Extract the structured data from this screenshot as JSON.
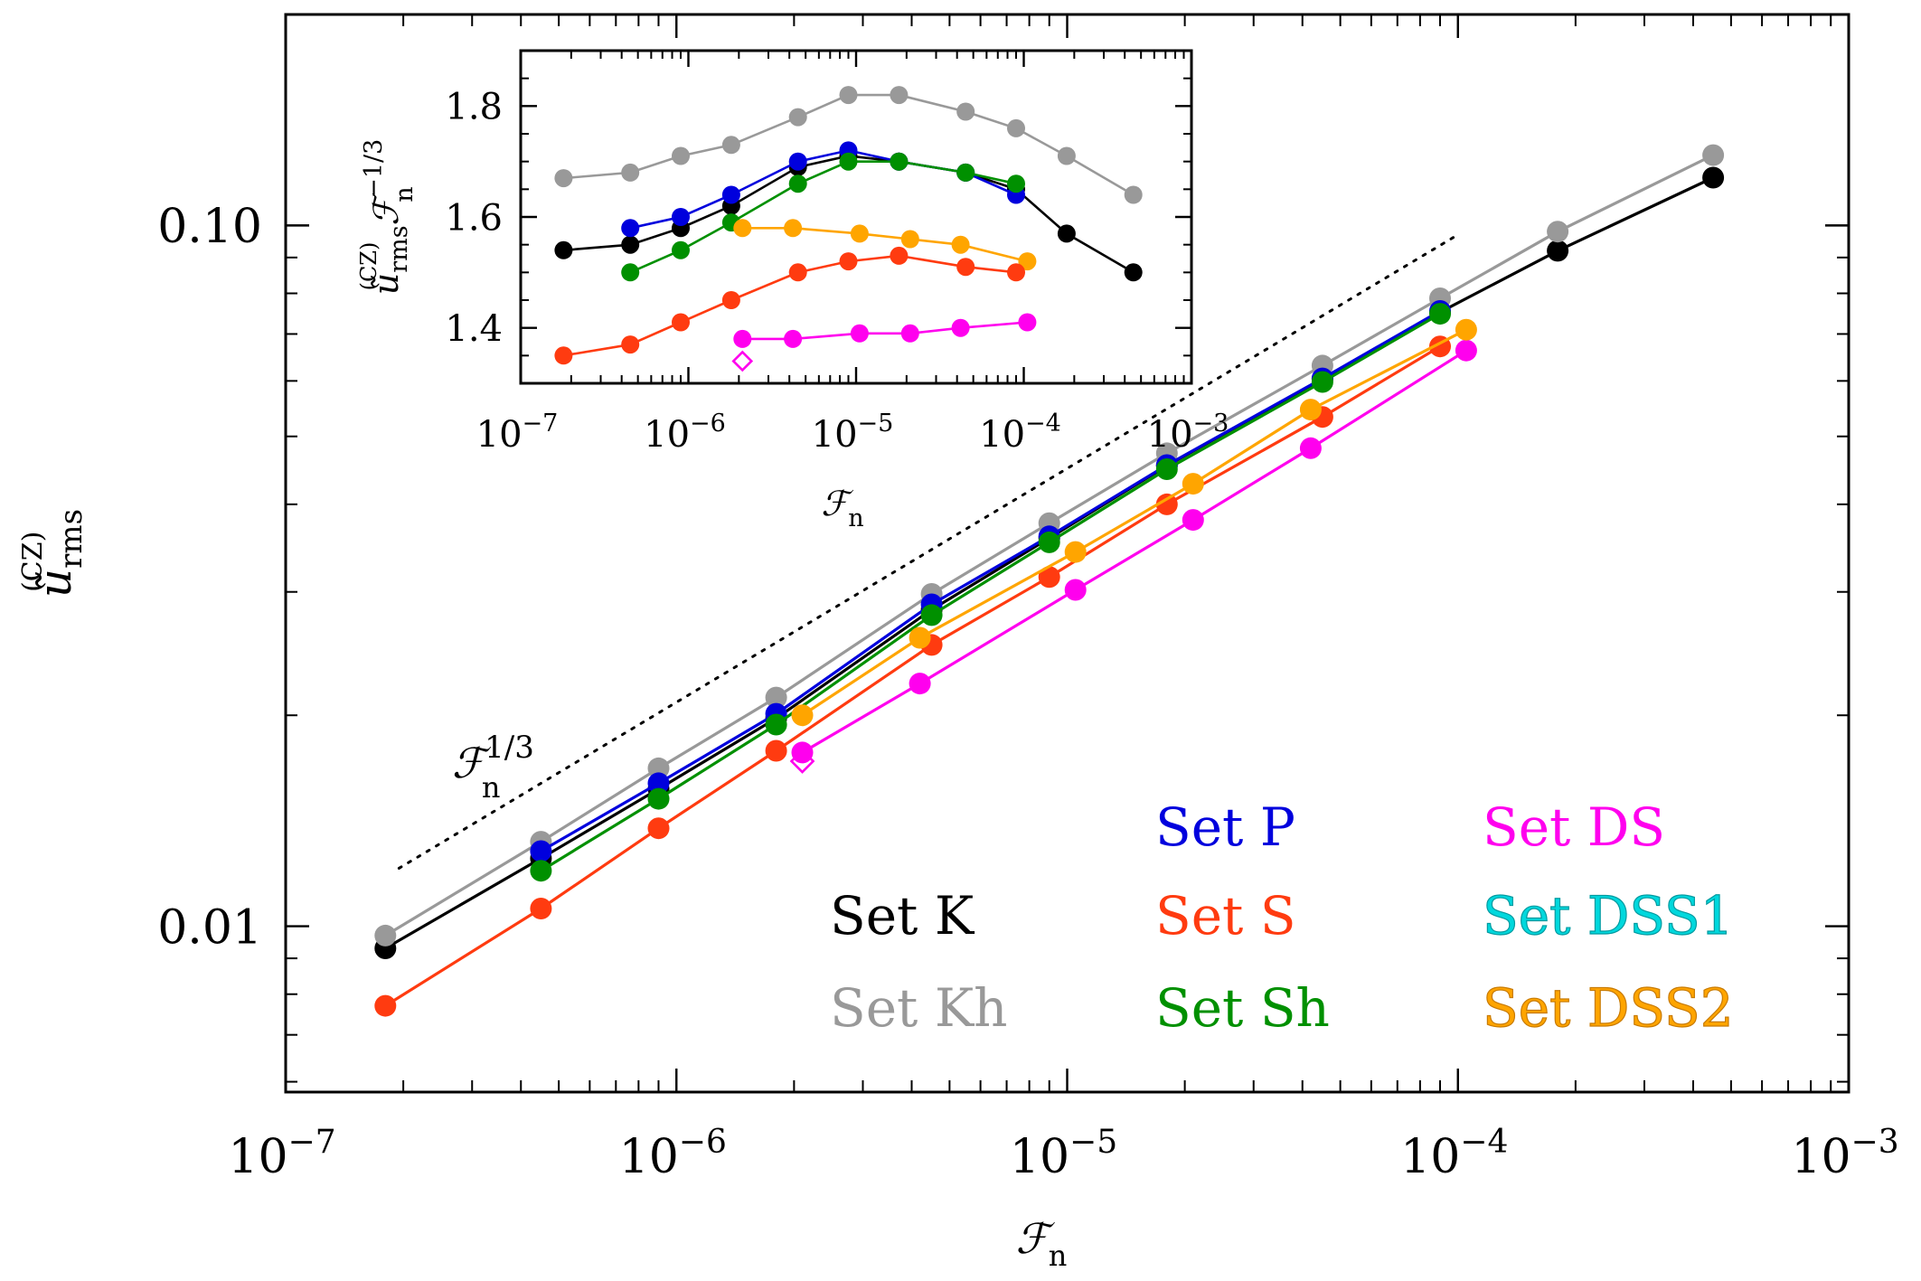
{
  "chart_data": [
    {
      "type": "line",
      "title": "",
      "xlabel": "ℱ",
      "xlabel_sub": "n",
      "ylabel": "ũ",
      "ylabel_sup": "(CZ)",
      "ylabel_sub": "rms",
      "xscale": "log",
      "yscale": "log",
      "xlim": [
        1e-07,
        0.001
      ],
      "ylim": [
        0.0058,
        0.2
      ],
      "x_ticks": [
        {
          "value": 1e-07,
          "base": "10",
          "exp": "−7"
        },
        {
          "value": 1e-06,
          "base": "10",
          "exp": "−6"
        },
        {
          "value": 1e-05,
          "base": "10",
          "exp": "−5"
        },
        {
          "value": 0.0001,
          "base": "10",
          "exp": "−4"
        },
        {
          "value": 0.001,
          "base": "10",
          "exp": "−3"
        }
      ],
      "y_ticks": [
        {
          "value": 0.01,
          "label": "0.01"
        },
        {
          "value": 0.1,
          "label": "0.10"
        }
      ],
      "reference_line": {
        "label": "ℱ",
        "label_sub": "n",
        "label_sup": "1/3",
        "x": [
          1.95e-07,
          0.0001
        ],
        "y": [
          0.0121,
          0.097
        ]
      },
      "series": [
        {
          "name": "Set K",
          "color": "#000000",
          "x": [
            1.8e-07,
            4.5e-07,
            9e-07,
            1.8e-06,
            4.5e-06,
            9e-06,
            1.8e-05,
            4.5e-05,
            9e-05,
            0.00018,
            0.00045
          ],
          "y": [
            0.0093,
            0.0125,
            0.0157,
            0.0198,
            0.0283,
            0.0358,
            0.0454,
            0.0604,
            0.0752,
            0.092,
            0.117
          ]
        },
        {
          "name": "Set Kh",
          "color": "#999999",
          "x": [
            1.8e-07,
            4.5e-07,
            9e-07,
            1.8e-06,
            4.5e-06,
            9e-06,
            1.8e-05,
            4.5e-05,
            9e-05,
            0.00018,
            0.00045
          ],
          "y": [
            0.0097,
            0.0132,
            0.0168,
            0.0212,
            0.0298,
            0.0376,
            0.0473,
            0.0631,
            0.0787,
            0.098,
            0.126
          ]
        },
        {
          "name": "Set P",
          "color": "#0000dd",
          "x": [
            4.5e-07,
            9e-07,
            1.8e-06,
            4.5e-06,
            9e-06,
            1.8e-05,
            4.5e-05,
            9e-05
          ],
          "y": [
            0.0128,
            0.016,
            0.0201,
            0.0288,
            0.036,
            0.0455,
            0.0605,
            0.0755
          ]
        },
        {
          "name": "Set S",
          "color": "#ff3b10",
          "x": [
            1.8e-07,
            4.5e-07,
            9e-07,
            1.8e-06,
            4.5e-06,
            9e-06,
            1.8e-05,
            4.5e-05,
            9e-05
          ],
          "y": [
            0.0077,
            0.0106,
            0.0138,
            0.0178,
            0.0252,
            0.0315,
            0.04,
            0.0533,
            0.0672
          ]
        },
        {
          "name": "Set Sh",
          "color": "#009000",
          "x": [
            4.5e-07,
            9e-07,
            1.8e-06,
            4.5e-06,
            9e-06,
            1.8e-05,
            4.5e-05,
            9e-05
          ],
          "y": [
            0.012,
            0.0152,
            0.0194,
            0.0278,
            0.0353,
            0.0449,
            0.0598,
            0.0748
          ]
        },
        {
          "name": "Set DS",
          "color": "#ff00ee",
          "x": [
            2.1e-06,
            4.2e-06,
            1.05e-05,
            2.1e-05,
            4.2e-05,
            0.000105
          ],
          "y": [
            0.0177,
            0.0222,
            0.0302,
            0.038,
            0.0481,
            0.0663
          ]
        },
        {
          "name": "Set DSS1",
          "color": "#00d8dd",
          "x": [],
          "y": []
        },
        {
          "name": "Set DSS2",
          "color": "#ffa500",
          "x": [
            2.1e-06,
            4.2e-06,
            1.05e-05,
            2.1e-05,
            4.2e-05,
            0.000105
          ],
          "y": [
            0.02,
            0.0258,
            0.0342,
            0.0428,
            0.0546,
            0.071
          ]
        }
      ],
      "open_markers": [
        {
          "series": "Set DS",
          "shape": "diamond",
          "x": 2.1e-06,
          "y": 0.0172
        }
      ]
    },
    {
      "type": "line",
      "title": "inset",
      "xlabel": "ℱ",
      "xlabel_sub": "n",
      "ylabel": "ũ",
      "ylabel_sup": "(CZ)",
      "ylabel_sub": "rms",
      "ylabel_factor": "ℱ",
      "ylabel_factor_sub": "n",
      "ylabel_factor_sup": "−1/3",
      "xscale": "log",
      "yscale": "linear",
      "xlim": [
        1e-07,
        0.001
      ],
      "ylim": [
        1.3,
        1.9
      ],
      "x_ticks": [
        {
          "value": 1e-07,
          "base": "10",
          "exp": "−7"
        },
        {
          "value": 1e-06,
          "base": "10",
          "exp": "−6"
        },
        {
          "value": 1e-05,
          "base": "10",
          "exp": "−5"
        },
        {
          "value": 0.0001,
          "base": "10",
          "exp": "−4"
        },
        {
          "value": 0.001,
          "base": "10",
          "exp": "−3"
        }
      ],
      "y_ticks": [
        {
          "value": 1.4,
          "label": "1.4"
        },
        {
          "value": 1.6,
          "label": "1.6"
        },
        {
          "value": 1.8,
          "label": "1.8"
        }
      ],
      "series": [
        {
          "name": "Set Kh",
          "color": "#999999",
          "x": [
            1.8e-07,
            4.5e-07,
            9e-07,
            1.8e-06,
            4.5e-06,
            9e-06,
            1.8e-05,
            4.5e-05,
            9e-05,
            0.00018,
            0.00045
          ],
          "y": [
            1.67,
            1.68,
            1.71,
            1.73,
            1.78,
            1.82,
            1.82,
            1.79,
            1.76,
            1.71,
            1.64
          ]
        },
        {
          "name": "Set K",
          "color": "#000000",
          "x": [
            1.8e-07,
            4.5e-07,
            9e-07,
            1.8e-06,
            4.5e-06,
            9e-06,
            1.8e-05,
            4.5e-05,
            9e-05,
            0.00018,
            0.00045
          ],
          "y": [
            1.54,
            1.55,
            1.58,
            1.62,
            1.69,
            1.71,
            1.7,
            1.68,
            1.65,
            1.57,
            1.5
          ]
        },
        {
          "name": "Set P",
          "color": "#0000dd",
          "x": [
            4.5e-07,
            9e-07,
            1.8e-06,
            4.5e-06,
            9e-06,
            1.8e-05,
            4.5e-05,
            9e-05
          ],
          "y": [
            1.58,
            1.6,
            1.64,
            1.7,
            1.72,
            1.7,
            1.68,
            1.64
          ]
        },
        {
          "name": "Set Sh",
          "color": "#009000",
          "x": [
            4.5e-07,
            9e-07,
            1.8e-06,
            4.5e-06,
            9e-06,
            1.8e-05,
            4.5e-05,
            9e-05
          ],
          "y": [
            1.5,
            1.54,
            1.59,
            1.66,
            1.7,
            1.7,
            1.68,
            1.66
          ]
        },
        {
          "name": "Set DSS2",
          "color": "#ffa500",
          "x": [
            2.1e-06,
            4.2e-06,
            1.05e-05,
            2.1e-05,
            4.2e-05,
            0.000105
          ],
          "y": [
            1.58,
            1.58,
            1.57,
            1.56,
            1.55,
            1.52
          ]
        },
        {
          "name": "Set S",
          "color": "#ff3b10",
          "x": [
            1.8e-07,
            4.5e-07,
            9e-07,
            1.8e-06,
            4.5e-06,
            9e-06,
            1.8e-05,
            4.5e-05,
            9e-05
          ],
          "y": [
            1.35,
            1.37,
            1.41,
            1.45,
            1.5,
            1.52,
            1.53,
            1.51,
            1.5
          ]
        },
        {
          "name": "Set DS",
          "color": "#ff00ee",
          "x": [
            2.1e-06,
            4.2e-06,
            1.05e-05,
            2.1e-05,
            4.2e-05,
            0.000105
          ],
          "y": [
            1.38,
            1.38,
            1.39,
            1.39,
            1.4,
            1.41
          ]
        }
      ],
      "open_markers": [
        {
          "series": "Set DS",
          "shape": "diamond",
          "x": 2.1e-06,
          "y": 1.34
        }
      ]
    }
  ],
  "legend": {
    "placement": "bottom-right",
    "columns": [
      [
        {
          "name": "Set K",
          "set": "Set",
          "id": "K",
          "color": "#000000"
        },
        {
          "name": "Set Kh",
          "set": "Set",
          "id": "Kh",
          "color": "#999999"
        }
      ],
      [
        {
          "name": "Set P",
          "set": "Set",
          "id": "P",
          "color": "#0000dd"
        },
        {
          "name": "Set S",
          "set": "Set",
          "id": "S",
          "color": "#ff3b10"
        },
        {
          "name": "Set Sh",
          "set": "Set",
          "id": "Sh",
          "color": "#009000"
        }
      ],
      [
        {
          "name": "Set DS",
          "set": "Set",
          "id": "DS",
          "color": "#ff00ee"
        },
        {
          "name": "Set DSS1",
          "set": "Set",
          "id": "DSS1",
          "color": "#00d8dd"
        },
        {
          "name": "Set DSS2",
          "set": "Set",
          "id": "DSS2",
          "color": "#ffa500"
        }
      ]
    ]
  }
}
